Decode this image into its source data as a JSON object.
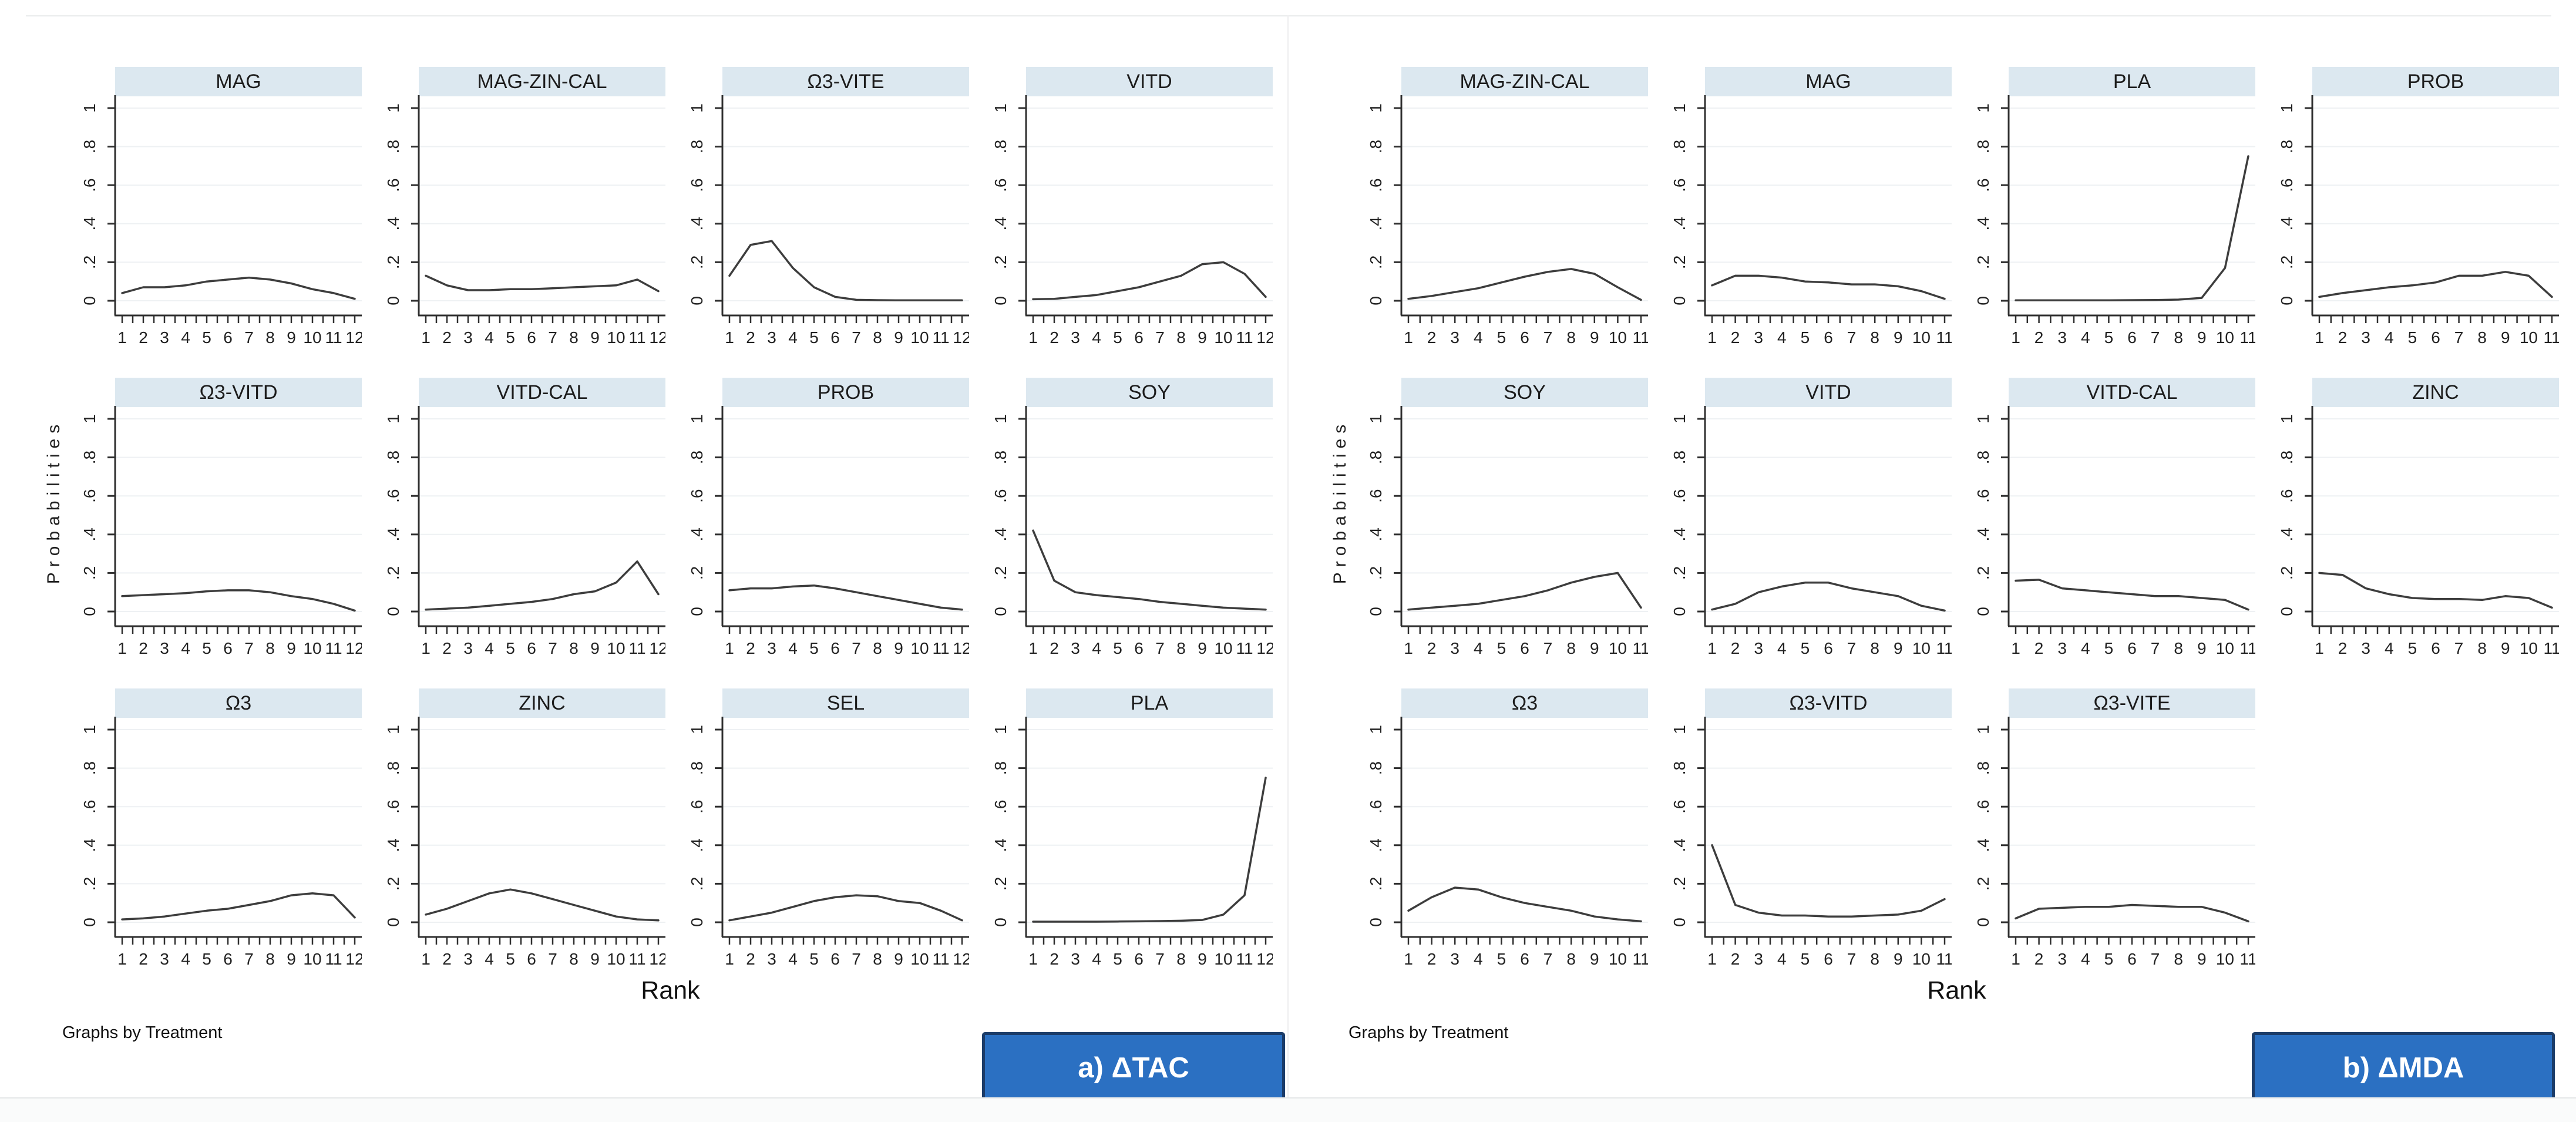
{
  "colors": {
    "header_fill": "#dce8f0",
    "curve": "#3d3d3d",
    "axis": "#2f2f2f",
    "grid": "#eef1f3",
    "title_text": "#1c1c1c",
    "tick_text": "#222222",
    "button_fill": "#2b70c2",
    "button_border": "#1b3c69",
    "button_text": "#ffffff"
  },
  "chart_data": [
    {
      "type": "line",
      "panel": "a",
      "caption": "a) ΔTAC",
      "note": "Graphs by Treatment",
      "xlabel": "Rank",
      "ylabel": "Probabilities",
      "ylim": [
        0,
        1
      ],
      "y_ticks": [
        "0",
        ".2",
        ".4",
        ".6",
        ".8",
        "1"
      ],
      "grid": true,
      "x": [
        1,
        2,
        3,
        4,
        5,
        6,
        7,
        8,
        9,
        10,
        11,
        12
      ],
      "series": [
        {
          "name": "MAG",
          "values": [
            0.04,
            0.07,
            0.07,
            0.08,
            0.1,
            0.11,
            0.12,
            0.11,
            0.09,
            0.06,
            0.04,
            0.01
          ]
        },
        {
          "name": "MAG-ZIN-CAL",
          "values": [
            0.13,
            0.08,
            0.055,
            0.055,
            0.06,
            0.06,
            0.065,
            0.07,
            0.075,
            0.08,
            0.11,
            0.05
          ]
        },
        {
          "name": "Ω3-VITE",
          "values": [
            0.13,
            0.29,
            0.31,
            0.17,
            0.07,
            0.02,
            0.005,
            0.003,
            0.002,
            0.002,
            0.002,
            0.002
          ]
        },
        {
          "name": "VITD",
          "values": [
            0.008,
            0.01,
            0.02,
            0.03,
            0.05,
            0.07,
            0.1,
            0.13,
            0.19,
            0.2,
            0.14,
            0.02
          ]
        },
        {
          "name": "Ω3-VITD",
          "values": [
            0.08,
            0.085,
            0.09,
            0.095,
            0.105,
            0.11,
            0.11,
            0.1,
            0.08,
            0.065,
            0.04,
            0.005
          ]
        },
        {
          "name": "VITD-CAL",
          "values": [
            0.01,
            0.015,
            0.02,
            0.03,
            0.04,
            0.05,
            0.065,
            0.09,
            0.105,
            0.15,
            0.26,
            0.09
          ]
        },
        {
          "name": "PROB",
          "values": [
            0.11,
            0.12,
            0.12,
            0.13,
            0.135,
            0.12,
            0.1,
            0.08,
            0.06,
            0.04,
            0.02,
            0.01
          ]
        },
        {
          "name": "SOY",
          "values": [
            0.42,
            0.16,
            0.1,
            0.085,
            0.075,
            0.065,
            0.05,
            0.04,
            0.03,
            0.02,
            0.015,
            0.01
          ]
        },
        {
          "name": "Ω3",
          "values": [
            0.015,
            0.02,
            0.03,
            0.045,
            0.06,
            0.07,
            0.09,
            0.11,
            0.14,
            0.15,
            0.14,
            0.025
          ]
        },
        {
          "name": "ZINC",
          "values": [
            0.04,
            0.07,
            0.11,
            0.15,
            0.17,
            0.15,
            0.12,
            0.09,
            0.06,
            0.03,
            0.015,
            0.01
          ]
        },
        {
          "name": "SEL",
          "values": [
            0.01,
            0.03,
            0.05,
            0.08,
            0.11,
            0.13,
            0.14,
            0.135,
            0.11,
            0.1,
            0.06,
            0.01
          ]
        },
        {
          "name": "PLA",
          "values": [
            0.003,
            0.003,
            0.003,
            0.003,
            0.004,
            0.005,
            0.006,
            0.008,
            0.012,
            0.04,
            0.14,
            0.75
          ]
        }
      ]
    },
    {
      "type": "line",
      "panel": "b",
      "caption": "b) ΔMDA",
      "note": "Graphs by Treatment",
      "xlabel": "Rank",
      "ylabel": "Probabilities",
      "ylim": [
        0,
        1
      ],
      "y_ticks": [
        "0",
        ".2",
        ".4",
        ".6",
        ".8",
        "1"
      ],
      "grid": true,
      "x": [
        1,
        2,
        3,
        4,
        5,
        6,
        7,
        8,
        9,
        10,
        11
      ],
      "series": [
        {
          "name": "MAG-ZIN-CAL",
          "values": [
            0.01,
            0.025,
            0.045,
            0.065,
            0.095,
            0.125,
            0.15,
            0.165,
            0.14,
            0.07,
            0.005
          ]
        },
        {
          "name": "MAG",
          "values": [
            0.08,
            0.13,
            0.13,
            0.12,
            0.1,
            0.095,
            0.085,
            0.085,
            0.075,
            0.05,
            0.01
          ]
        },
        {
          "name": "PLA",
          "values": [
            0.002,
            0.002,
            0.002,
            0.002,
            0.002,
            0.003,
            0.004,
            0.006,
            0.015,
            0.17,
            0.75
          ]
        },
        {
          "name": "PROB",
          "values": [
            0.02,
            0.04,
            0.055,
            0.07,
            0.08,
            0.095,
            0.13,
            0.13,
            0.15,
            0.13,
            0.02
          ]
        },
        {
          "name": "SOY",
          "values": [
            0.01,
            0.02,
            0.03,
            0.04,
            0.06,
            0.08,
            0.11,
            0.15,
            0.18,
            0.2,
            0.02
          ]
        },
        {
          "name": "VITD",
          "values": [
            0.01,
            0.04,
            0.1,
            0.13,
            0.15,
            0.15,
            0.12,
            0.1,
            0.08,
            0.03,
            0.005
          ]
        },
        {
          "name": "VITD-CAL",
          "values": [
            0.16,
            0.165,
            0.12,
            0.11,
            0.1,
            0.09,
            0.08,
            0.08,
            0.07,
            0.06,
            0.01
          ]
        },
        {
          "name": "ZINC",
          "values": [
            0.2,
            0.19,
            0.12,
            0.09,
            0.07,
            0.065,
            0.065,
            0.06,
            0.08,
            0.07,
            0.02
          ]
        },
        {
          "name": "Ω3",
          "values": [
            0.06,
            0.13,
            0.18,
            0.17,
            0.13,
            0.1,
            0.08,
            0.06,
            0.03,
            0.015,
            0.005
          ]
        },
        {
          "name": "Ω3-VITD",
          "values": [
            0.4,
            0.09,
            0.05,
            0.035,
            0.035,
            0.03,
            0.03,
            0.035,
            0.04,
            0.06,
            0.12
          ]
        },
        {
          "name": "Ω3-VITE",
          "values": [
            0.02,
            0.07,
            0.075,
            0.08,
            0.08,
            0.09,
            0.085,
            0.08,
            0.08,
            0.05,
            0.005
          ]
        }
      ]
    }
  ]
}
